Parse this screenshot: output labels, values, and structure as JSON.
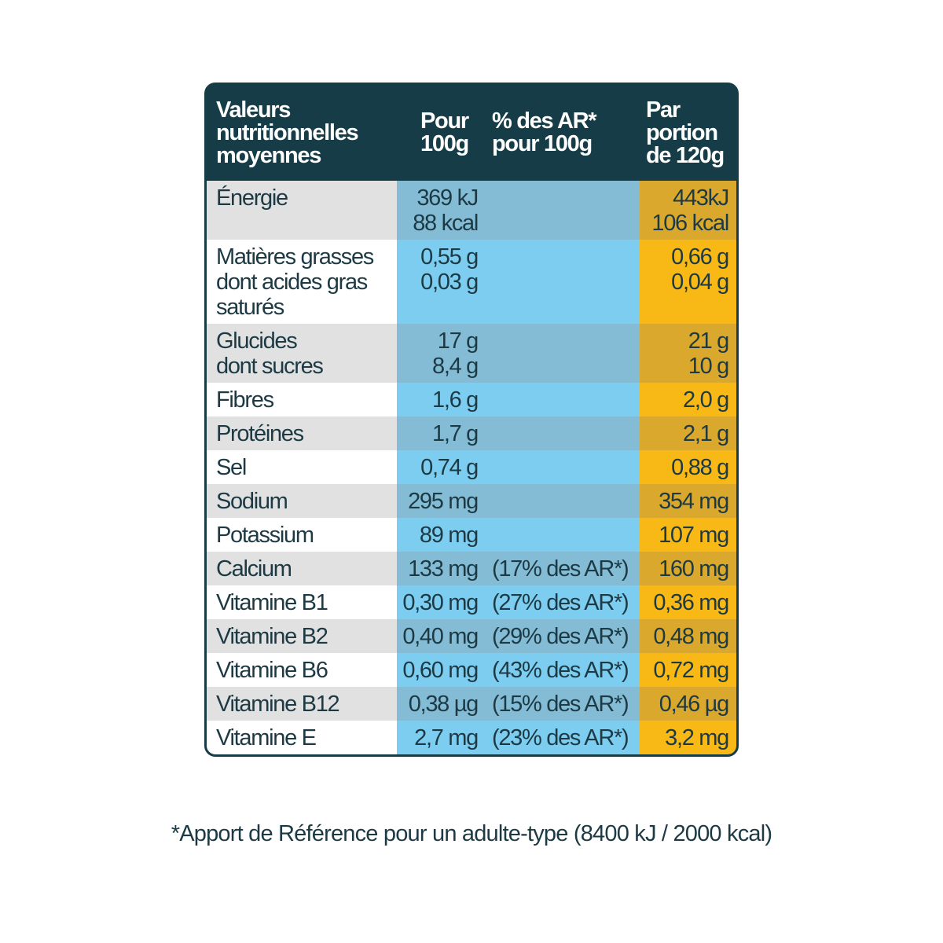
{
  "header": {
    "columns": [
      [
        "Valeurs",
        "nutritionnelles",
        "moyennes"
      ],
      [
        "Pour",
        "100g"
      ],
      [
        "% des AR*",
        "pour 100g"
      ],
      [
        "Par",
        "portion",
        "de 120g"
      ]
    ]
  },
  "table": {
    "rows": [
      {
        "name": [
          "Énergie"
        ],
        "per_100g": [
          "369 kJ",
          "88 kcal"
        ],
        "portion": [
          "443kJ",
          "106 kcal"
        ]
      },
      {
        "name": [
          "Matières grasses",
          "dont acides gras",
          "saturés"
        ],
        "per_100g": [
          "0,55 g",
          "0,03 g"
        ],
        "portion": [
          "0,66 g",
          "0,04 g"
        ]
      },
      {
        "name": [
          "Glucides",
          "dont sucres"
        ],
        "per_100g": [
          "17 g",
          "8,4 g"
        ],
        "portion": [
          "21 g",
          "10 g"
        ]
      },
      {
        "name": [
          "Fibres"
        ],
        "per_100g": [
          "1,6 g"
        ],
        "portion": [
          "2,0 g"
        ]
      },
      {
        "name": [
          "Protéines"
        ],
        "per_100g": [
          "1,7 g"
        ],
        "portion": [
          "2,1 g"
        ]
      },
      {
        "name": [
          "Sel"
        ],
        "per_100g": [
          "0,74 g"
        ],
        "portion": [
          "0,88 g"
        ]
      },
      {
        "name": [
          "Sodium"
        ],
        "per_100g": [
          "295 mg"
        ],
        "portion": [
          "354 mg"
        ]
      },
      {
        "name": [
          "Potassium"
        ],
        "per_100g": [
          "89 mg"
        ],
        "portion": [
          "107 mg"
        ]
      },
      {
        "name": [
          "Calcium"
        ],
        "per_100g": [
          "133 mg"
        ],
        "ar": [
          "(17% des AR*)"
        ],
        "portion": [
          "160 mg"
        ]
      },
      {
        "name": [
          "Vitamine B1"
        ],
        "per_100g": [
          "0,30 mg"
        ],
        "ar": [
          "(27% des AR*)"
        ],
        "portion": [
          "0,36 mg"
        ]
      },
      {
        "name": [
          "Vitamine B2"
        ],
        "per_100g": [
          "0,40 mg"
        ],
        "ar": [
          "(29% des AR*)"
        ],
        "portion": [
          "0,48 mg"
        ]
      },
      {
        "name": [
          "Vitamine B6"
        ],
        "per_100g": [
          "0,60 mg"
        ],
        "ar": [
          "(43% des AR*)"
        ],
        "portion": [
          "0,72 mg"
        ]
      },
      {
        "name": [
          "Vitamine B12"
        ],
        "per_100g": [
          "0,38 µg"
        ],
        "ar": [
          "(15% des AR*)"
        ],
        "portion": [
          "0,46 µg"
        ]
      },
      {
        "name": [
          "Vitamine E"
        ],
        "per_100g": [
          "2,7 mg"
        ],
        "ar": [
          "(23% des AR*)"
        ],
        "portion": [
          "3,2 mg"
        ]
      }
    ]
  },
  "footnote": "*Apport de Référence pour un adulte-type (8400 kJ / 2000 kcal)"
}
